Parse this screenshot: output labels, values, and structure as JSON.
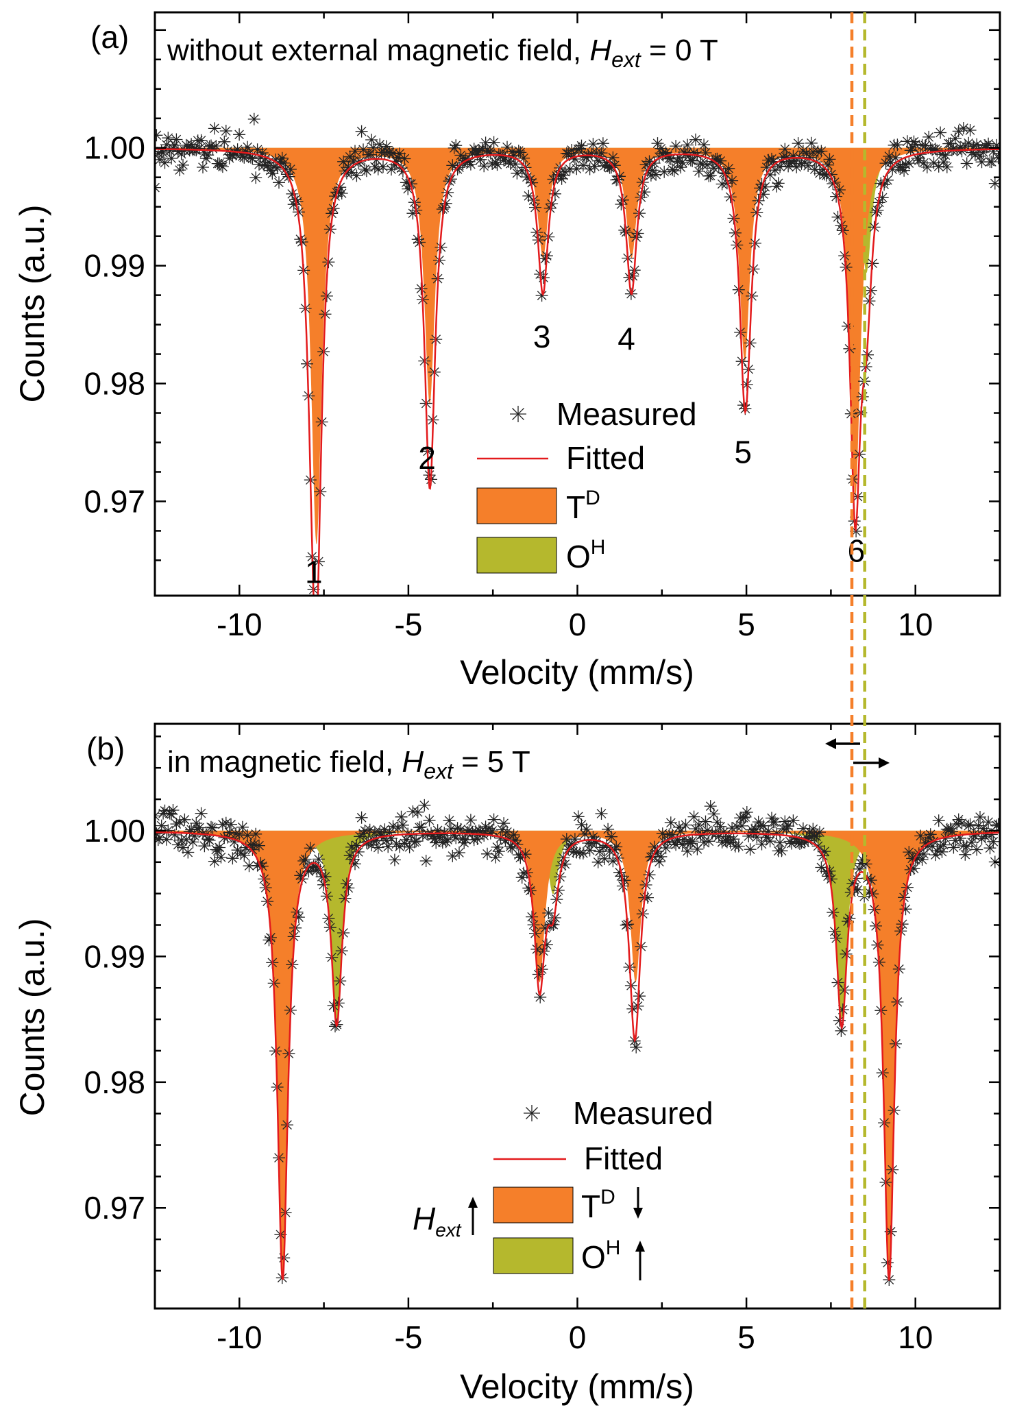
{
  "figure": {
    "arrow_left": "←",
    "arrow_right": "→"
  },
  "colors": {
    "fit": "#e31a1c",
    "td": "#f57f2a",
    "oh": "#b5b82d",
    "measured": "#222222",
    "axis": "#000000"
  },
  "chart_data": [
    {
      "type": "line",
      "panel": "(a)",
      "title": "without external magnetic field, ",
      "title_math": {
        "symbol": "H",
        "subscript": "ext",
        "value": " = 0 T"
      },
      "xlabel": "Velocity (mm/s)",
      "ylabel": "Counts (a.u.)",
      "xlim": [
        -12.5,
        12.5
      ],
      "ylim": [
        0.962,
        1.0115
      ],
      "xticks": [
        -10,
        -5,
        0,
        5,
        10
      ],
      "xtick_labels": [
        "-10",
        "-5",
        "0",
        "5",
        "10"
      ],
      "yticks": [
        0.97,
        0.98,
        0.99,
        1.0
      ],
      "ytick_labels": [
        "0.97",
        "0.98",
        "0.99",
        "1.00"
      ],
      "baseline": 1.0,
      "linewidth_mm_s": 0.38,
      "series": [
        {
          "name": "TD",
          "label": "T",
          "superscript": "D",
          "peaks": [
            [
              -7.72,
              0.0336
            ],
            [
              -4.37,
              0.0216
            ],
            [
              -1.02,
              0.0092
            ],
            [
              1.6,
              0.0092
            ],
            [
              4.95,
              0.018
            ],
            [
              8.22,
              0.0296
            ]
          ]
        },
        {
          "name": "OH",
          "label": "O",
          "superscript": "H",
          "peaks": [
            [
              -7.85,
              0.0106
            ],
            [
              -4.35,
              0.0072
            ],
            [
              -1.02,
              0.003
            ],
            [
              1.6,
              0.003
            ],
            [
              5.05,
              0.0052
            ],
            [
              8.55,
              0.0106
            ]
          ]
        }
      ],
      "peak_labels": [
        {
          "text": "1",
          "x": -7.8,
          "y": 0.964
        },
        {
          "text": "2",
          "x": -4.45,
          "y": 0.9737
        },
        {
          "text": "3",
          "x": -1.05,
          "y": 0.984
        },
        {
          "text": "4",
          "x": 1.45,
          "y": 0.9838
        },
        {
          "text": "5",
          "x": 4.9,
          "y": 0.9742
        },
        {
          "text": "6",
          "x": 8.25,
          "y": 0.9658
        }
      ],
      "legend": {
        "location": "lower-center",
        "measured": "Measured",
        "fitted": "Fitted"
      },
      "vlines": [
        {
          "x": 8.12,
          "color": "td"
        },
        {
          "x": 8.5,
          "color": "oh"
        }
      ]
    },
    {
      "type": "line",
      "panel": "(b)",
      "title": "in magnetic field, ",
      "title_math": {
        "symbol": "H",
        "subscript": "ext",
        "value": " = 5 T"
      },
      "xlabel": "Velocity (mm/s)",
      "ylabel": "Counts (a.u.)",
      "xlim": [
        -12.5,
        12.5
      ],
      "ylim": [
        0.962,
        1.0085
      ],
      "xticks": [
        -10,
        -5,
        0,
        5,
        10
      ],
      "xtick_labels": [
        "-10",
        "-5",
        "0",
        "5",
        "10"
      ],
      "yticks": [
        0.97,
        0.98,
        0.99,
        1.0
      ],
      "ytick_labels": [
        "0.97",
        "0.98",
        "0.99",
        "1.00"
      ],
      "baseline": 1.0,
      "linewidth_mm_s": 0.38,
      "series": [
        {
          "name": "TD",
          "label": "T",
          "superscript": "D",
          "arrow": "down",
          "peaks": [
            [
              -8.72,
              0.0355
            ],
            [
              -1.12,
              0.012
            ],
            [
              1.72,
              0.012
            ],
            [
              9.22,
              0.0355
            ]
          ]
        },
        {
          "name": "OH",
          "label": "O",
          "superscript": "H",
          "arrow": "up",
          "peaks": [
            [
              -7.12,
              0.015
            ],
            [
              -0.72,
              0.005
            ],
            [
              1.65,
              0.005
            ],
            [
              7.82,
              0.015
            ]
          ]
        }
      ],
      "legend": {
        "location": "lower-center",
        "measured": "Measured",
        "fitted": "Fitted",
        "field_symbol": "H",
        "field_subscript": "ext"
      },
      "vlines": [
        {
          "x": 8.12,
          "color": "td"
        },
        {
          "x": 8.5,
          "color": "oh"
        }
      ]
    }
  ]
}
